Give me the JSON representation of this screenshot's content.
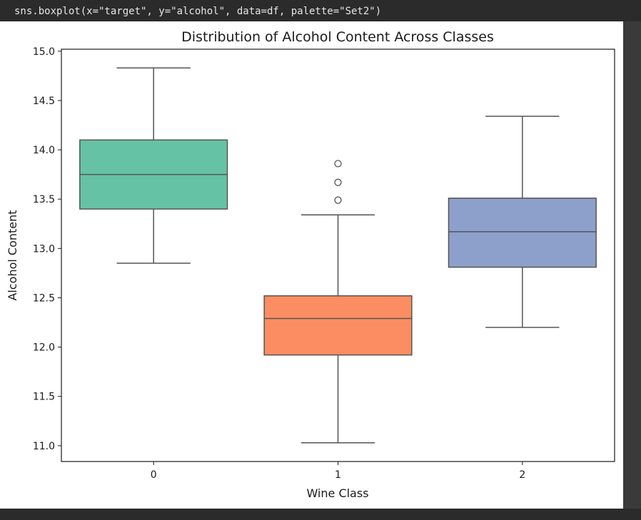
{
  "code": {
    "text": "sns.boxplot(x=\"target\", y=\"alcohol\", data=df, palette=\"Set2\")"
  },
  "chart_data": {
    "type": "box",
    "title": "Distribution of Alcohol Content Across Classes",
    "xlabel": "Wine Class",
    "ylabel": "Alcohol Content",
    "categories": [
      "0",
      "1",
      "2"
    ],
    "ylim": [
      10.84,
      15.02
    ],
    "yticks": [
      11.0,
      11.5,
      12.0,
      12.5,
      13.0,
      13.5,
      14.0,
      14.5,
      15.0
    ],
    "ytick_labels": [
      "11.0",
      "11.5",
      "12.0",
      "12.5",
      "13.0",
      "13.5",
      "14.0",
      "14.5",
      "15.0"
    ],
    "grid": false,
    "boxes": [
      {
        "category": "0",
        "whisker_low": 12.85,
        "q1": 13.4,
        "median": 13.75,
        "q3": 14.1,
        "whisker_high": 14.83,
        "outliers": [],
        "color": "#66c2a5"
      },
      {
        "category": "1",
        "whisker_low": 11.03,
        "q1": 11.92,
        "median": 12.29,
        "q3": 12.52,
        "whisker_high": 13.34,
        "outliers": [
          13.49,
          13.67,
          13.86
        ],
        "color": "#fc8d62"
      },
      {
        "category": "2",
        "whisker_low": 12.2,
        "q1": 12.81,
        "median": 13.17,
        "q3": 13.51,
        "whisker_high": 14.34,
        "outliers": [],
        "color": "#8da0cb"
      }
    ]
  }
}
